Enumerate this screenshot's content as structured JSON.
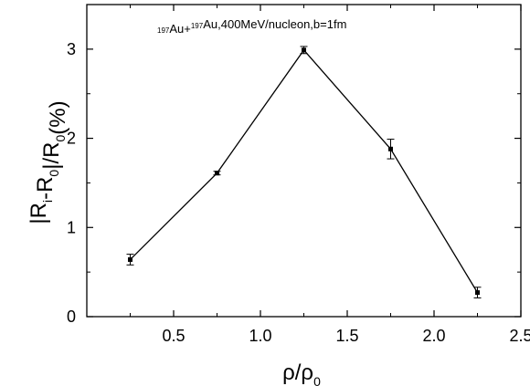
{
  "chart_data": {
    "type": "line",
    "title": "",
    "annotation": {
      "parts": [
        {
          "text": "197",
          "sup": true
        },
        {
          "text": "Au+",
          "sup": false
        },
        {
          "text": "197",
          "sup": true
        },
        {
          "text": "Au,400MeV/nucleon,b=1fm",
          "sup": false
        }
      ]
    },
    "xlabel": {
      "parts": [
        {
          "text": "ρ/ρ",
          "sub": false
        },
        {
          "text": "0",
          "sub": true
        }
      ]
    },
    "ylabel": {
      "parts": [
        {
          "text": "|R",
          "sub": false
        },
        {
          "text": "i",
          "sub": true
        },
        {
          "text": "-R",
          "sub": false
        },
        {
          "text": "0",
          "sub": true
        },
        {
          "text": "|/R",
          "sub": false
        },
        {
          "text": "0",
          "sub": true
        },
        {
          "text": "(%)",
          "sub": false
        }
      ]
    },
    "xlim": [
      0,
      2.5
    ],
    "ylim": [
      0,
      3.5
    ],
    "xticks": [
      0.5,
      1.0,
      1.5,
      2.0,
      2.5
    ],
    "xtick_labels": [
      "0.5",
      "1.0",
      "1.5",
      "2.0",
      "2.5"
    ],
    "yticks": [
      0,
      1,
      2,
      3
    ],
    "ytick_labels": [
      "0",
      "1",
      "2",
      "3"
    ],
    "grid": false,
    "series": [
      {
        "x": [
          0.25,
          0.75,
          1.25,
          1.75,
          2.25
        ],
        "y": [
          0.64,
          1.61,
          2.99,
          1.88,
          0.27
        ],
        "yerr": [
          0.06,
          0.02,
          0.04,
          0.11,
          0.06
        ]
      }
    ]
  }
}
